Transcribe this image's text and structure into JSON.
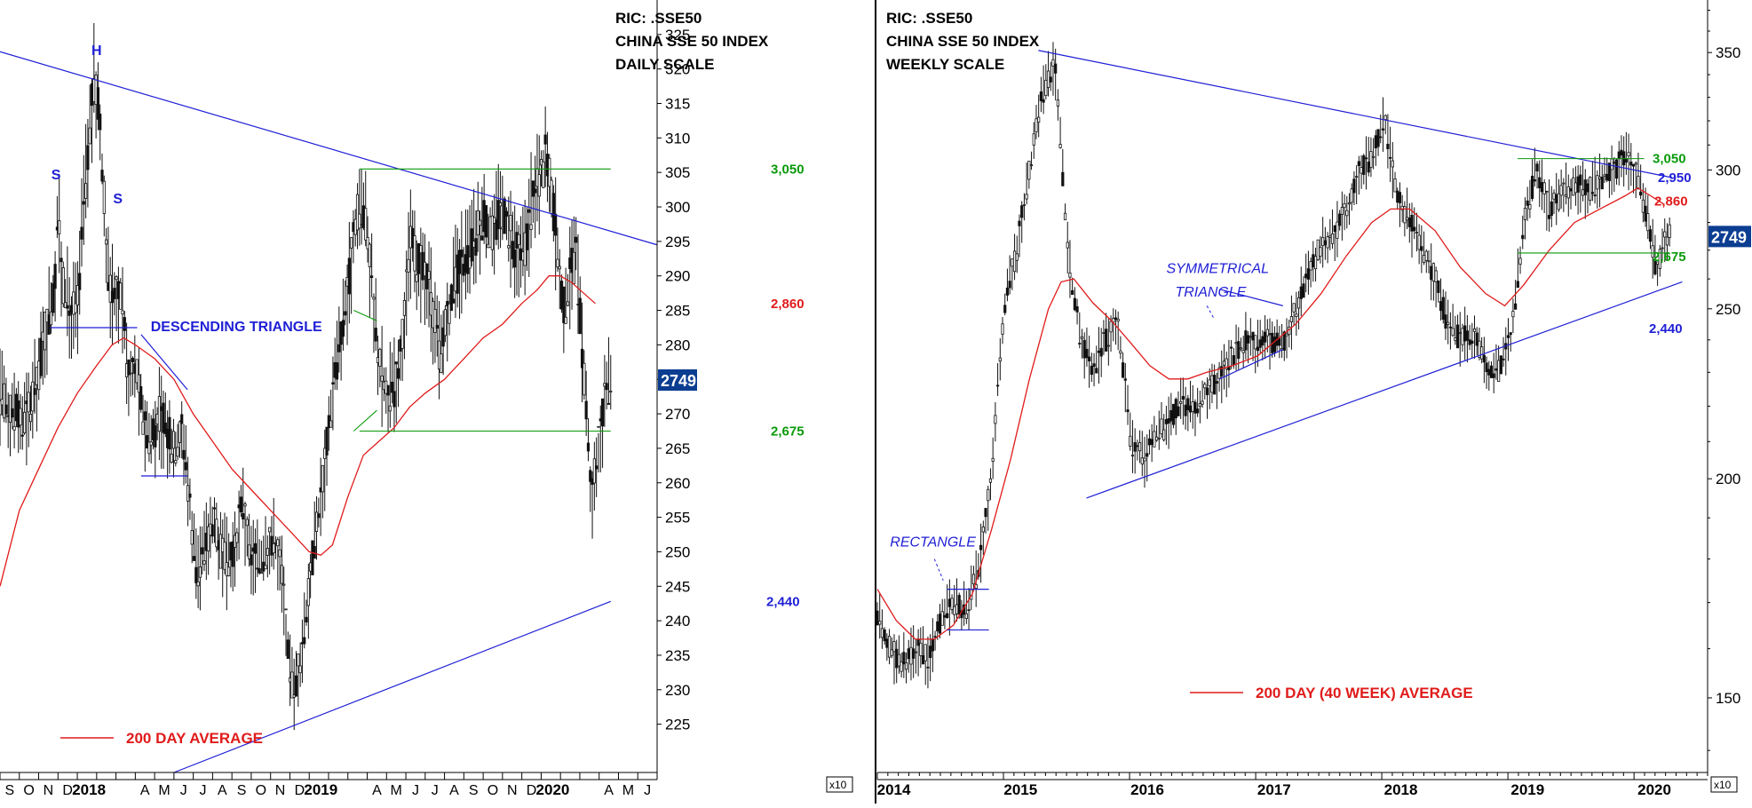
{
  "chart_data": [
    {
      "type": "candlestick",
      "scale": "daily",
      "header": [
        "RIC: .SSE50",
        "CHINA SSE 50 INDEX",
        "DAILY SCALE"
      ],
      "y_ticks": [
        225,
        230,
        235,
        240,
        245,
        250,
        255,
        260,
        265,
        270,
        275,
        280,
        285,
        290,
        295,
        300,
        305,
        310,
        315,
        320,
        325
      ],
      "y_multiplier": "x10",
      "ylim": [
        218,
        330
      ],
      "last_price_label": "2749",
      "last_price": 274.9,
      "x_labels": [
        "S",
        "O",
        "N",
        "D",
        "2018",
        "A",
        "M",
        "J",
        "J",
        "A",
        "S",
        "O",
        "N",
        "D",
        "2019",
        "A",
        "M",
        "J",
        "J",
        "A",
        "S",
        "O",
        "N",
        "D",
        "2020",
        "A",
        "M",
        "J"
      ],
      "x_label_pos": [
        0.5,
        1.5,
        2.5,
        3.5,
        4.6,
        7.5,
        8.5,
        9.5,
        10.5,
        11.5,
        12.5,
        13.5,
        14.5,
        15.5,
        16.6,
        19.5,
        20.5,
        21.5,
        22.5,
        23.5,
        24.5,
        25.5,
        26.5,
        27.5,
        28.6,
        31.5,
        32.5,
        33.5
      ],
      "xlim": [
        0,
        34
      ],
      "price_path": [
        [
          0,
          272.5
        ],
        [
          0.4,
          271
        ],
        [
          0.8,
          270
        ],
        [
          1.2,
          268.5
        ],
        [
          1.6,
          271
        ],
        [
          2,
          276
        ],
        [
          2.4,
          283
        ],
        [
          2.8,
          288
        ],
        [
          3,
          300
        ],
        [
          3.2,
          290
        ],
        [
          3.6,
          285
        ],
        [
          4,
          285
        ],
        [
          4.3,
          300
        ],
        [
          4.6,
          310
        ],
        [
          4.85,
          318
        ],
        [
          5.1,
          315
        ],
        [
          5.3,
          305
        ],
        [
          5.6,
          290
        ],
        [
          5.9,
          287
        ],
        [
          6.3,
          288
        ],
        [
          6.6,
          275
        ],
        [
          7,
          277
        ],
        [
          7.4,
          270
        ],
        [
          7.8,
          265
        ],
        [
          8.2,
          270
        ],
        [
          8.6,
          268
        ],
        [
          9,
          265
        ],
        [
          9.4,
          268
        ],
        [
          9.8,
          258
        ],
        [
          10.2,
          245
        ],
        [
          10.6,
          250
        ],
        [
          11,
          255
        ],
        [
          11.4,
          250
        ],
        [
          11.8,
          248
        ],
        [
          12.2,
          250
        ],
        [
          12.5,
          258
        ],
        [
          12.9,
          250
        ],
        [
          13.3,
          248
        ],
        [
          13.7,
          250
        ],
        [
          14.1,
          252
        ],
        [
          14.5,
          249
        ],
        [
          14.9,
          236
        ],
        [
          15.2,
          229
        ],
        [
          15.5,
          234
        ],
        [
          15.8,
          240
        ],
        [
          16.2,
          250
        ],
        [
          16.6,
          258
        ],
        [
          16.9,
          265
        ],
        [
          17.3,
          275
        ],
        [
          17.6,
          280
        ],
        [
          18,
          288
        ],
        [
          18.4,
          298
        ],
        [
          18.8,
          300
        ],
        [
          19.2,
          290
        ],
        [
          19.6,
          278
        ],
        [
          20,
          272
        ],
        [
          20.4,
          274
        ],
        [
          20.8,
          280
        ],
        [
          21.2,
          295
        ],
        [
          21.6,
          292
        ],
        [
          22,
          290
        ],
        [
          22.4,
          285
        ],
        [
          22.8,
          278
        ],
        [
          23.2,
          285
        ],
        [
          23.6,
          290
        ],
        [
          24,
          292
        ],
        [
          24.5,
          295
        ],
        [
          25,
          298
        ],
        [
          25.5,
          296
        ],
        [
          26,
          300
        ],
        [
          26.5,
          295
        ],
        [
          27,
          292
        ],
        [
          27.5,
          300
        ],
        [
          28,
          305
        ],
        [
          28.3,
          308
        ],
        [
          28.6,
          300
        ],
        [
          28.9,
          292
        ],
        [
          29.2,
          285
        ],
        [
          29.5,
          290
        ],
        [
          29.8,
          293
        ],
        [
          30.1,
          280
        ],
        [
          30.4,
          268
        ],
        [
          30.6,
          258
        ],
        [
          30.8,
          262
        ],
        [
          31.1,
          268
        ],
        [
          31.4,
          274
        ],
        [
          31.6,
          275
        ]
      ],
      "ma200_label": "200 DAY AVERAGE",
      "ma200_path": [
        [
          0,
          245
        ],
        [
          1,
          256
        ],
        [
          2,
          262
        ],
        [
          3,
          268
        ],
        [
          4,
          273
        ],
        [
          5,
          277
        ],
        [
          5.8,
          280
        ],
        [
          6.4,
          281
        ],
        [
          7,
          280
        ],
        [
          8,
          278
        ],
        [
          9,
          275
        ],
        [
          10,
          270
        ],
        [
          11,
          266
        ],
        [
          12,
          262
        ],
        [
          13,
          259
        ],
        [
          14,
          256
        ],
        [
          15,
          253
        ],
        [
          16,
          250
        ],
        [
          16.6,
          249.5
        ],
        [
          17.2,
          251
        ],
        [
          18,
          258
        ],
        [
          18.8,
          264
        ],
        [
          19.6,
          266
        ],
        [
          20.4,
          268
        ],
        [
          21.2,
          271
        ],
        [
          22,
          273
        ],
        [
          23,
          275
        ],
        [
          24,
          278
        ],
        [
          25,
          281
        ],
        [
          26,
          283
        ],
        [
          27,
          286
        ],
        [
          27.8,
          288
        ],
        [
          28.4,
          290
        ],
        [
          29,
          290
        ],
        [
          29.6,
          289
        ],
        [
          30,
          288
        ],
        [
          30.8,
          286
        ]
      ],
      "annotations": [
        {
          "text": "H",
          "x": 5,
          "y": 322
        },
        {
          "text": "S",
          "x": 2.9,
          "y": 304
        },
        {
          "text": "S",
          "x": 6.1,
          "y": 300.5
        },
        {
          "text": "DESCENDING TRIANGLE",
          "x": 7.8,
          "y": 282
        }
      ],
      "resistance_line": {
        "from": [
          0,
          322.5
        ],
        "to": [
          34,
          294.5
        ]
      },
      "support_line": {
        "from": [
          9,
          218
        ],
        "to": [
          31.6,
          242.8
        ],
        "label": "2,440"
      },
      "level_3050": {
        "y": 305.5,
        "from": 18.6,
        "to": 31.6,
        "label": "3,050"
      },
      "level_2675": {
        "y": 267.5,
        "from": 18.6,
        "to": 31.6,
        "label": "2,675"
      },
      "label_2860": "2,860",
      "hs_neckline": {
        "y": 282.5,
        "from": 2.6,
        "to": 7.1
      },
      "desc_top": {
        "from": [
          7.3,
          281.5
        ],
        "to": [
          9.7,
          273.5
        ]
      },
      "desc_bottom": {
        "y": 261,
        "from": 7.3,
        "to": 9.7
      },
      "flag_top": {
        "from": [
          18.3,
          285
        ],
        "to": [
          19.5,
          283.5
        ]
      },
      "flag_bottom": {
        "from": [
          18.3,
          267.5
        ],
        "to": [
          19.5,
          270.5
        ]
      }
    },
    {
      "type": "candlestick",
      "scale": "weekly",
      "yscale": "log",
      "header": [
        "RIC: .SSE50",
        "CHINA SSE 50 INDEX",
        "WEEKLY SCALE"
      ],
      "y_ticks": [
        150,
        200,
        250,
        300,
        350
      ],
      "y_multiplier": "x10",
      "ylim": [
        136,
        375
      ],
      "last_price_label": "2749",
      "last_price": 274.9,
      "x_labels": [
        "2014",
        "2015",
        "2016",
        "2017",
        "2018",
        "2019",
        "2020"
      ],
      "xlim": [
        2014,
        2020.55
      ],
      "price_path": [
        [
          2014,
          167
        ],
        [
          2014.1,
          160
        ],
        [
          2014.2,
          157
        ],
        [
          2014.3,
          160
        ],
        [
          2014.4,
          158
        ],
        [
          2014.5,
          166
        ],
        [
          2014.6,
          170
        ],
        [
          2014.7,
          168
        ],
        [
          2014.8,
          178
        ],
        [
          2014.9,
          200
        ],
        [
          2015,
          250
        ],
        [
          2015.1,
          270
        ],
        [
          2015.2,
          300
        ],
        [
          2015.3,
          330
        ],
        [
          2015.4,
          345
        ],
        [
          2015.5,
          270
        ],
        [
          2015.6,
          240
        ],
        [
          2015.7,
          230
        ],
        [
          2015.8,
          240
        ],
        [
          2015.9,
          245
        ],
        [
          2016,
          210
        ],
        [
          2016.1,
          205
        ],
        [
          2016.2,
          212
        ],
        [
          2016.3,
          215
        ],
        [
          2016.4,
          222
        ],
        [
          2016.5,
          218
        ],
        [
          2016.6,
          225
        ],
        [
          2016.7,
          228
        ],
        [
          2016.8,
          235
        ],
        [
          2016.9,
          240
        ],
        [
          2017,
          238
        ],
        [
          2017.1,
          240
        ],
        [
          2017.2,
          238
        ],
        [
          2017.3,
          250
        ],
        [
          2017.4,
          262
        ],
        [
          2017.5,
          272
        ],
        [
          2017.6,
          275
        ],
        [
          2017.7,
          285
        ],
        [
          2017.8,
          300
        ],
        [
          2017.9,
          305
        ],
        [
          2018,
          320
        ],
        [
          2018.1,
          290
        ],
        [
          2018.2,
          280
        ],
        [
          2018.3,
          270
        ],
        [
          2018.4,
          260
        ],
        [
          2018.5,
          245
        ],
        [
          2018.6,
          240
        ],
        [
          2018.7,
          243
        ],
        [
          2018.8,
          232
        ],
        [
          2018.9,
          230
        ],
        [
          2019,
          240
        ],
        [
          2019.1,
          280
        ],
        [
          2019.2,
          300
        ],
        [
          2019.3,
          285
        ],
        [
          2019.4,
          290
        ],
        [
          2019.5,
          295
        ],
        [
          2019.6,
          292
        ],
        [
          2019.7,
          296
        ],
        [
          2019.8,
          300
        ],
        [
          2019.9,
          305
        ],
        [
          2020,
          297
        ],
        [
          2020.08,
          280
        ],
        [
          2020.15,
          262
        ],
        [
          2020.2,
          272
        ],
        [
          2020.25,
          274.9
        ]
      ],
      "ma200_label": "200 DAY (40 WEEK) AVERAGE",
      "ma200_path": [
        [
          2014,
          173
        ],
        [
          2014.15,
          166
        ],
        [
          2014.3,
          162
        ],
        [
          2014.45,
          162
        ],
        [
          2014.6,
          165
        ],
        [
          2014.75,
          172
        ],
        [
          2014.9,
          187
        ],
        [
          2015.05,
          205
        ],
        [
          2015.2,
          228
        ],
        [
          2015.35,
          250
        ],
        [
          2015.45,
          259
        ],
        [
          2015.55,
          260
        ],
        [
          2015.7,
          252
        ],
        [
          2015.85,
          246
        ],
        [
          2016,
          239
        ],
        [
          2016.15,
          232
        ],
        [
          2016.3,
          228
        ],
        [
          2016.45,
          228
        ],
        [
          2016.6,
          230
        ],
        [
          2016.8,
          232
        ],
        [
          2017,
          235
        ],
        [
          2017.15,
          240
        ],
        [
          2017.3,
          245
        ],
        [
          2017.5,
          255
        ],
        [
          2017.7,
          268
        ],
        [
          2017.9,
          280
        ],
        [
          2018.05,
          285
        ],
        [
          2018.2,
          285
        ],
        [
          2018.4,
          277
        ],
        [
          2018.6,
          264
        ],
        [
          2018.8,
          255
        ],
        [
          2018.95,
          251
        ],
        [
          2019.1,
          258
        ],
        [
          2019.3,
          270
        ],
        [
          2019.5,
          280
        ],
        [
          2019.7,
          285
        ],
        [
          2019.9,
          290
        ],
        [
          2020,
          293
        ],
        [
          2020.1,
          290
        ],
        [
          2020.2,
          287
        ]
      ],
      "annotations": [
        {
          "text": "SYMMETRICAL",
          "x": 2016.28,
          "y": 262
        },
        {
          "text": "TRIANGLE",
          "x": 2016.35,
          "y": 254
        },
        {
          "text": "RECTANGLE",
          "x": 2014.1,
          "y": 183
        }
      ],
      "resistance_line": {
        "from": [
          2015.27,
          351
        ],
        "to": [
          2020.27,
          297
        ],
        "label": "2,950"
      },
      "support_line": {
        "from": [
          2015.65,
          195
        ],
        "to": [
          2020.35,
          259
        ],
        "label": "2,440"
      },
      "level_3050": {
        "y": 304.5,
        "from": 2019.05,
        "to": 2020.05,
        "label": "3,050"
      },
      "level_2675": {
        "y": 269,
        "from": 2019.05,
        "to": 2020.25,
        "label": "2,675"
      },
      "label_2860": "2,860",
      "rect_top": 173,
      "rect_bottom": 164,
      "rect_from": 2014.55,
      "rect_to": 2014.88,
      "tri_top": {
        "from": [
          2016.7,
          256.5
        ],
        "to": [
          2017.2,
          251
        ]
      },
      "tri_bottom": {
        "from": [
          2016.7,
          228
        ],
        "to": [
          2017.2,
          237
        ]
      }
    }
  ]
}
